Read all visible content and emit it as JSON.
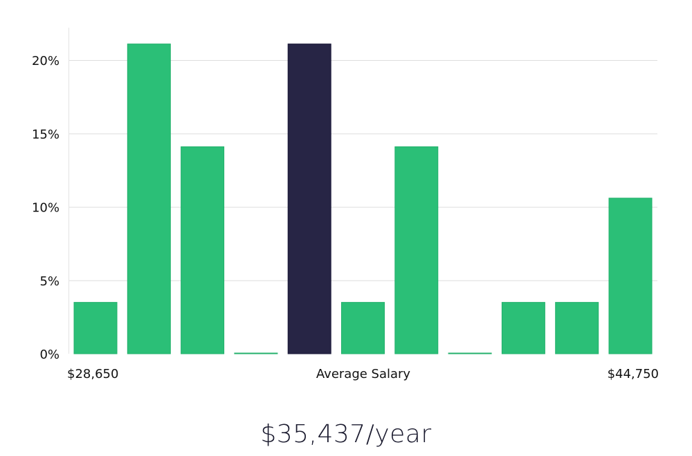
{
  "chart_data": {
    "type": "bar",
    "title": "",
    "xlabel": "",
    "ylabel": "",
    "ylim": [
      0,
      22
    ],
    "y_ticks": [
      "0%",
      "5%",
      "10%",
      "15%",
      "20%"
    ],
    "y_tick_values": [
      0,
      5,
      10,
      15,
      20
    ],
    "grid": true,
    "bins": 11,
    "values": [
      3.5,
      21.1,
      14.1,
      0,
      21.1,
      3.5,
      14.1,
      0,
      3.5,
      3.5,
      10.6
    ],
    "highlight_index": 4,
    "x_labels": {
      "min": "$28,650",
      "center": "Average Salary",
      "max": "$44,750"
    }
  },
  "colors": {
    "bar": "#2bbf77",
    "bar_stroke": "#22b06b",
    "highlight": "#272545",
    "highlight_stroke": "#1a1838"
  },
  "summary": {
    "salary": "$35,437/year"
  }
}
